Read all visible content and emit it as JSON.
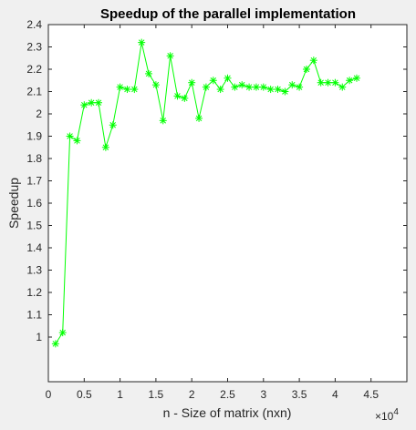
{
  "chart_data": {
    "type": "line",
    "title": "Speedup of the parallel implementation",
    "xlabel": "n - Size of matrix (nxn)",
    "ylabel": "Speedup",
    "x_multiplier_label": "×10",
    "x_multiplier_exp": "4",
    "xlim": [
      0,
      50000
    ],
    "ylim": [
      0.8,
      2.4
    ],
    "xticks": [
      0,
      5000,
      10000,
      15000,
      20000,
      25000,
      30000,
      35000,
      40000,
      45000
    ],
    "xtick_labels": [
      "0",
      "0.5",
      "1",
      "1.5",
      "2",
      "2.5",
      "3",
      "3.5",
      "4",
      "4.5"
    ],
    "yticks": [
      1,
      1.1,
      1.2,
      1.3,
      1.4,
      1.5,
      1.6,
      1.7,
      1.8,
      1.9,
      2,
      2.1,
      2.2,
      2.3,
      2.4
    ],
    "ytick_labels": [
      "1",
      "1.1",
      "1.2",
      "1.3",
      "1.4",
      "1.5",
      "1.6",
      "1.7",
      "1.8",
      "1.9",
      "2",
      "2.1",
      "2.2",
      "2.3",
      "2.4"
    ],
    "grid": false,
    "marker": "asterisk",
    "series": [
      {
        "color": "#00ff00",
        "x": [
          1000,
          2000,
          3000,
          4000,
          5000,
          6000,
          7000,
          8000,
          9000,
          10000,
          11000,
          12000,
          13000,
          14000,
          15000,
          16000,
          17000,
          18000,
          19000,
          20000,
          21000,
          22000,
          23000,
          24000,
          25000,
          26000,
          27000,
          28000,
          29000,
          30000,
          31000,
          32000,
          33000,
          34000,
          35000,
          36000,
          37000,
          38000,
          39000,
          40000,
          41000,
          42000,
          43000
        ],
        "values": [
          0.97,
          1.02,
          1.9,
          1.88,
          2.04,
          2.05,
          2.05,
          1.85,
          1.95,
          2.12,
          2.11,
          2.11,
          2.32,
          2.18,
          2.13,
          1.97,
          2.26,
          2.08,
          2.07,
          2.14,
          1.98,
          2.12,
          2.15,
          2.11,
          2.16,
          2.12,
          2.13,
          2.12,
          2.12,
          2.12,
          2.11,
          2.11,
          2.1,
          2.13,
          2.12,
          2.2,
          2.24,
          2.14,
          2.14,
          2.14,
          2.12,
          2.15,
          2.16
        ]
      }
    ]
  }
}
